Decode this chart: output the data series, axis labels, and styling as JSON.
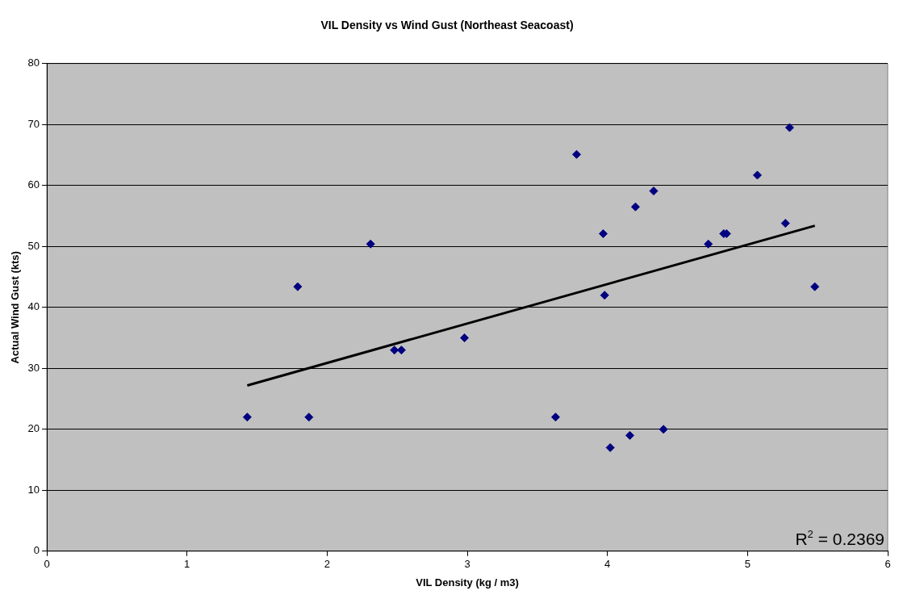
{
  "chart_data": {
    "type": "scatter",
    "title": "VIL Density vs Wind Gust (Northeast Seacoast)",
    "xlabel": "VIL Density (kg / m3)",
    "ylabel": "Actual Wind Gust (kts)",
    "series": [
      {
        "color": "#000080",
        "marker": "diamond",
        "x": [
          1.43,
          1.79,
          1.87,
          2.31,
          2.48,
          2.53,
          2.98,
          3.78,
          3.97,
          3.98,
          4.2,
          4.33,
          4.72,
          4.83,
          4.85,
          5.07,
          5.27,
          5.3,
          5.48,
          3.63,
          4.02,
          4.16,
          4.4
        ],
        "values": [
          22,
          43.4,
          22,
          50.4,
          33,
          33,
          35,
          65.1,
          52.1,
          42,
          56.5,
          59.1,
          50.4,
          52.1,
          52.1,
          61.7,
          53.8,
          69.5,
          43.4,
          22,
          17,
          19,
          20
        ]
      },
      {
        "type": "line",
        "color": "#000000",
        "marker": "none",
        "line_style": "solid",
        "x": [
          1.43,
          5.48
        ],
        "values": [
          27.2,
          53.4
        ]
      }
    ],
    "xlim": [
      0,
      6
    ],
    "xticks": [
      0,
      1,
      2,
      3,
      4,
      5,
      6
    ],
    "ylim": [
      0,
      80
    ],
    "yticks": [
      0,
      10,
      20,
      30,
      40,
      50,
      60,
      70,
      80
    ],
    "grid": "y",
    "legend": false,
    "annotations": [
      "R$^{2}$ = 0.2369"
    ]
  }
}
